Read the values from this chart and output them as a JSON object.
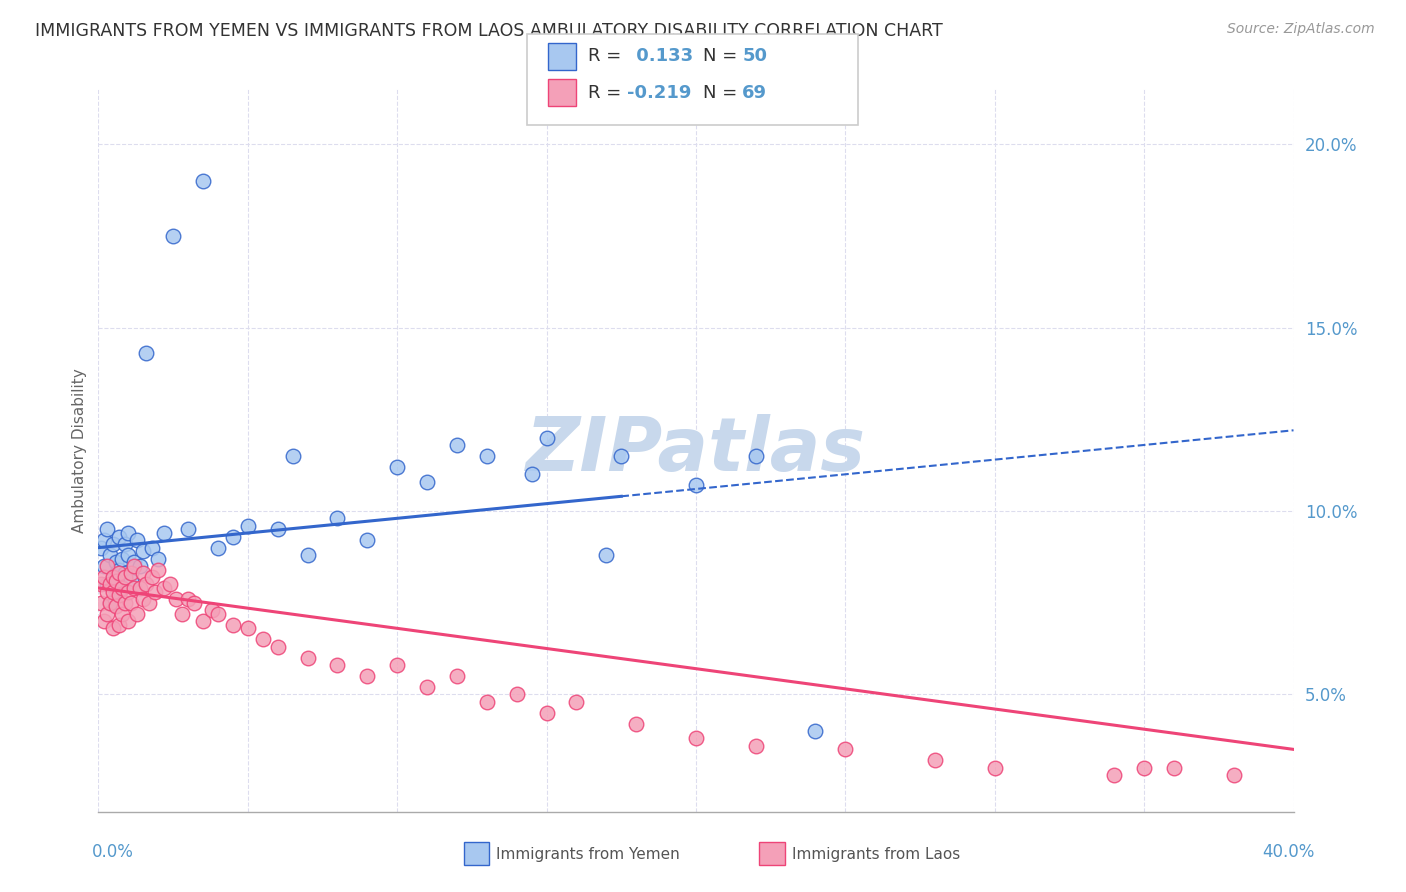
{
  "title": "IMMIGRANTS FROM YEMEN VS IMMIGRANTS FROM LAOS AMBULATORY DISABILITY CORRELATION CHART",
  "source": "Source: ZipAtlas.com",
  "ylabel": "Ambulatory Disability",
  "xmin": 0.0,
  "xmax": 0.4,
  "ymin": 0.018,
  "ymax": 0.215,
  "yticks": [
    0.05,
    0.1,
    0.15,
    0.2
  ],
  "color_yemen": "#A8C8F0",
  "color_laos": "#F4A0B8",
  "trend_color_yemen": "#3366CC",
  "trend_color_laos": "#EE4477",
  "watermark": "ZIPatlas",
  "watermark_color": "#C8D8EC",
  "background_color": "#FFFFFF",
  "title_fontsize": 12.5,
  "tick_color": "#5599CC",
  "yemen_x": [
    0.001,
    0.002,
    0.002,
    0.003,
    0.003,
    0.004,
    0.004,
    0.005,
    0.005,
    0.006,
    0.006,
    0.007,
    0.007,
    0.008,
    0.008,
    0.009,
    0.009,
    0.01,
    0.01,
    0.011,
    0.012,
    0.013,
    0.014,
    0.015,
    0.016,
    0.018,
    0.02,
    0.022,
    0.025,
    0.03,
    0.035,
    0.04,
    0.045,
    0.05,
    0.06,
    0.065,
    0.07,
    0.08,
    0.09,
    0.1,
    0.11,
    0.12,
    0.13,
    0.15,
    0.17,
    0.2,
    0.24,
    0.145,
    0.175,
    0.22
  ],
  "yemen_y": [
    0.09,
    0.085,
    0.092,
    0.08,
    0.095,
    0.075,
    0.088,
    0.082,
    0.091,
    0.078,
    0.086,
    0.093,
    0.084,
    0.079,
    0.087,
    0.091,
    0.083,
    0.088,
    0.094,
    0.081,
    0.086,
    0.092,
    0.085,
    0.089,
    0.143,
    0.09,
    0.087,
    0.094,
    0.175,
    0.095,
    0.19,
    0.09,
    0.093,
    0.096,
    0.095,
    0.115,
    0.088,
    0.098,
    0.092,
    0.112,
    0.108,
    0.118,
    0.115,
    0.12,
    0.088,
    0.107,
    0.04,
    0.11,
    0.115,
    0.115
  ],
  "laos_x": [
    0.001,
    0.001,
    0.002,
    0.002,
    0.003,
    0.003,
    0.003,
    0.004,
    0.004,
    0.005,
    0.005,
    0.005,
    0.006,
    0.006,
    0.007,
    0.007,
    0.007,
    0.008,
    0.008,
    0.009,
    0.009,
    0.01,
    0.01,
    0.011,
    0.011,
    0.012,
    0.012,
    0.013,
    0.014,
    0.015,
    0.015,
    0.016,
    0.017,
    0.018,
    0.019,
    0.02,
    0.022,
    0.024,
    0.026,
    0.028,
    0.03,
    0.032,
    0.035,
    0.038,
    0.04,
    0.045,
    0.05,
    0.055,
    0.06,
    0.07,
    0.08,
    0.09,
    0.1,
    0.11,
    0.12,
    0.13,
    0.14,
    0.15,
    0.16,
    0.18,
    0.2,
    0.22,
    0.25,
    0.28,
    0.3,
    0.34,
    0.36,
    0.38,
    0.35
  ],
  "laos_y": [
    0.08,
    0.075,
    0.082,
    0.07,
    0.078,
    0.085,
    0.072,
    0.08,
    0.075,
    0.082,
    0.068,
    0.078,
    0.074,
    0.081,
    0.069,
    0.077,
    0.083,
    0.072,
    0.079,
    0.075,
    0.082,
    0.07,
    0.078,
    0.083,
    0.075,
    0.079,
    0.085,
    0.072,
    0.079,
    0.083,
    0.076,
    0.08,
    0.075,
    0.082,
    0.078,
    0.084,
    0.079,
    0.08,
    0.076,
    0.072,
    0.076,
    0.075,
    0.07,
    0.073,
    0.072,
    0.069,
    0.068,
    0.065,
    0.063,
    0.06,
    0.058,
    0.055,
    0.058,
    0.052,
    0.055,
    0.048,
    0.05,
    0.045,
    0.048,
    0.042,
    0.038,
    0.036,
    0.035,
    0.032,
    0.03,
    0.028,
    0.03,
    0.028,
    0.03
  ],
  "yemen_trend_x0": 0.0,
  "yemen_trend_x1": 0.4,
  "yemen_trend_y0": 0.09,
  "yemen_trend_y1": 0.122,
  "yemen_trend_solid_x1": 0.175,
  "laos_trend_x0": 0.0,
  "laos_trend_x1": 0.4,
  "laos_trend_y0": 0.079,
  "laos_trend_y1": 0.035
}
